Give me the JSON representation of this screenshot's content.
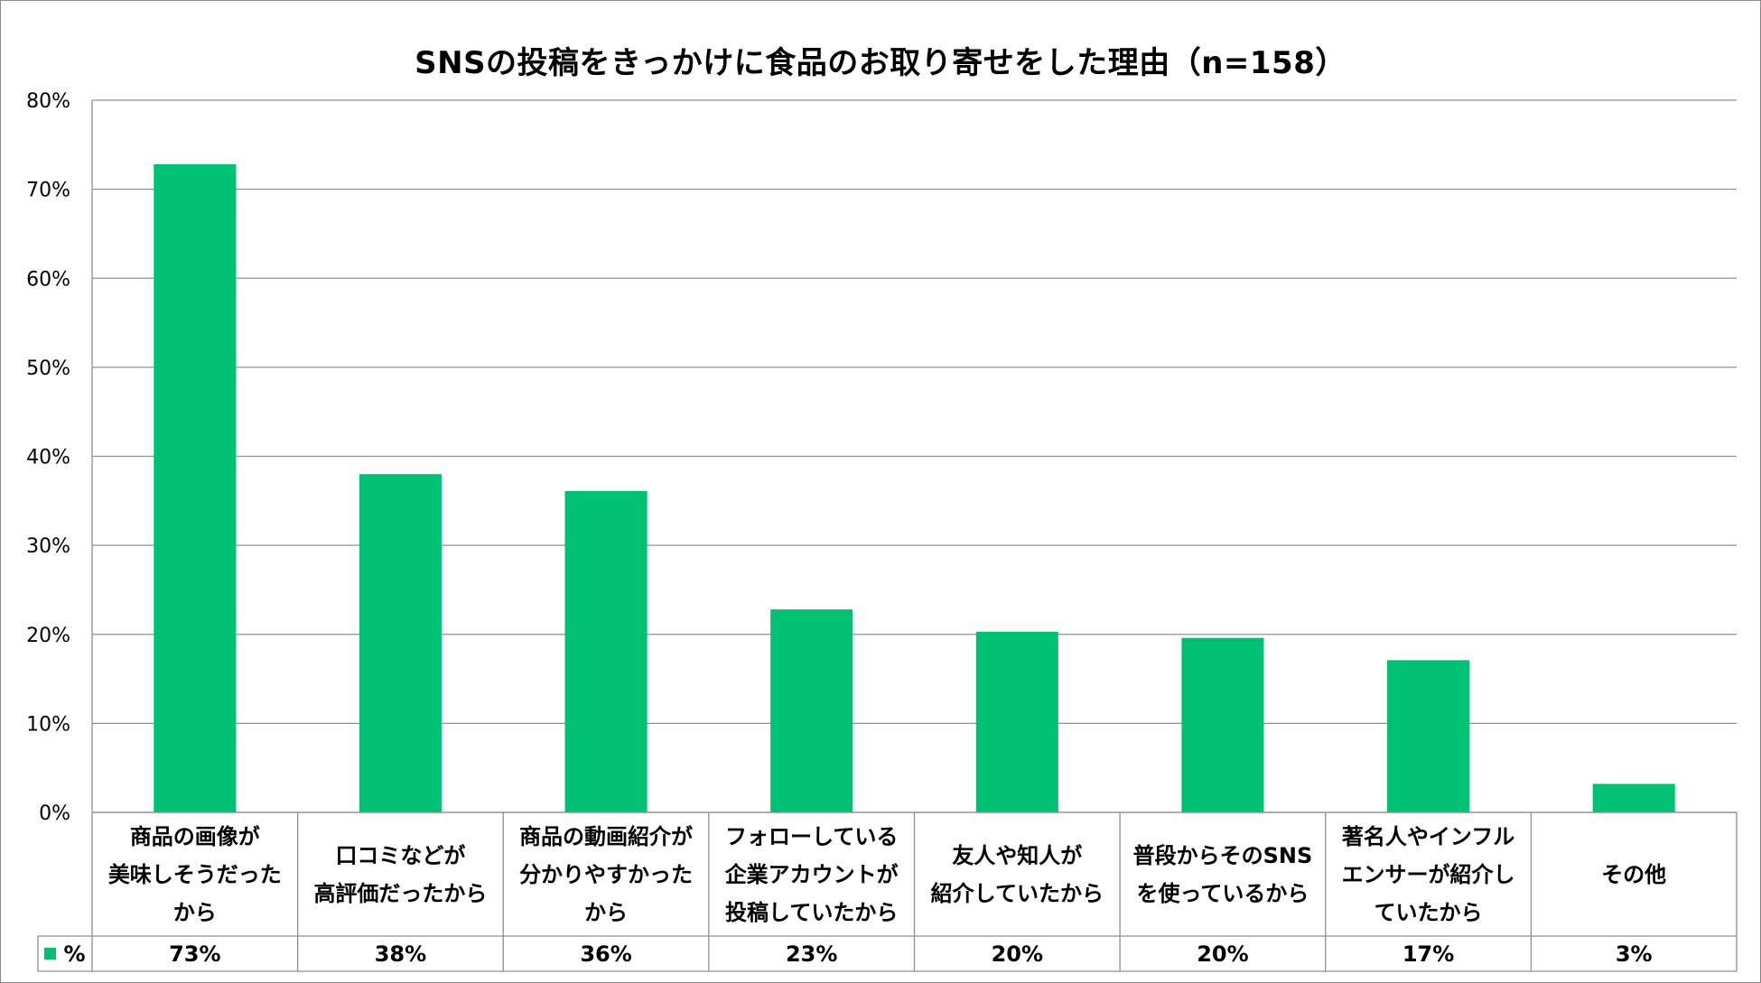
{
  "chart_data": {
    "type": "bar",
    "title": "SNSの投稿をきっかけに食品のお取り寄せをした理由（n=158）",
    "categories": [
      "商品の画像が\n美味しそうだった\nから",
      "口コミなどが\n高評価だったから",
      "商品の動画紹介が\n分かりやすかった\nから",
      "フォローしている\n企業アカウントが\n投稿していたから",
      "友人や知人が\n紹介していたから",
      "普段からそのSNS\nを使っているから",
      "著名人やインフル\nエンサーが紹介し\nていたから",
      "その他"
    ],
    "series": [
      {
        "name": "%",
        "values": [
          72.8,
          38.0,
          36.1,
          22.8,
          20.3,
          19.6,
          17.1,
          3.2
        ],
        "labels": [
          "73%",
          "38%",
          "36%",
          "23%",
          "20%",
          "20%",
          "17%",
          "3%"
        ]
      }
    ],
    "ylim": [
      0,
      80
    ],
    "yticks": [
      0,
      10,
      20,
      30,
      40,
      50,
      60,
      70,
      80
    ],
    "ytick_labels": [
      "0%",
      "10%",
      "20%",
      "30%",
      "40%",
      "50%",
      "60%",
      "70%",
      "80%"
    ],
    "xlabel": "",
    "ylabel": "",
    "grid": true,
    "legend": "data-table",
    "bar_color": "#00c073"
  }
}
